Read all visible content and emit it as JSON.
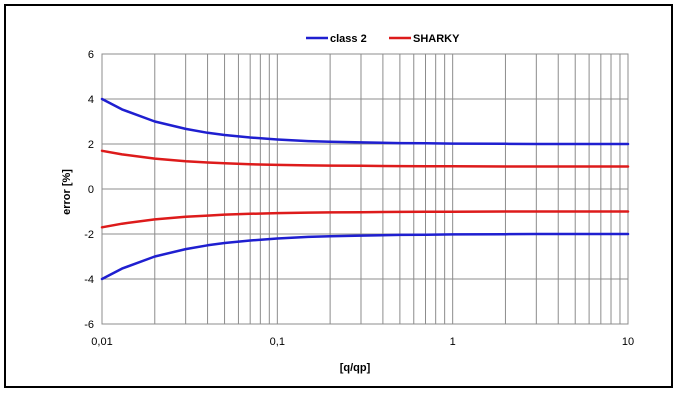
{
  "chart_data": {
    "type": "line",
    "title": "",
    "xlabel": "[q/qp]",
    "ylabel": "error [%]",
    "x_scale": "log",
    "xlim": [
      0.01,
      10
    ],
    "ylim": [
      -6,
      6
    ],
    "grid": true,
    "legend_position": "top-center",
    "x_tick_labels": [
      "0,01",
      "0,1",
      "1",
      "10"
    ],
    "y_tick_labels": [
      "-6",
      "-4",
      "-2",
      "0",
      "2",
      "4",
      "6"
    ],
    "x": [
      0.01,
      0.013,
      0.02,
      0.03,
      0.04,
      0.05,
      0.07,
      0.1,
      0.15,
      0.2,
      0.3,
      0.5,
      0.7,
      1,
      2,
      3,
      5,
      10
    ],
    "series": [
      {
        "name": "class 2",
        "color": "#1f1fd0",
        "upper": [
          4.0,
          3.54,
          3.0,
          2.67,
          2.5,
          2.4,
          2.29,
          2.2,
          2.13,
          2.1,
          2.07,
          2.04,
          2.03,
          2.02,
          2.01,
          2.0,
          2.0,
          2.0
        ],
        "lower": [
          -4.0,
          -3.54,
          -3.0,
          -2.67,
          -2.5,
          -2.4,
          -2.29,
          -2.2,
          -2.13,
          -2.1,
          -2.07,
          -2.04,
          -2.03,
          -2.02,
          -2.01,
          -2.0,
          -2.0,
          -2.0
        ]
      },
      {
        "name": "SHARKY",
        "color": "#dd1b1b",
        "upper": [
          1.7,
          1.54,
          1.35,
          1.23,
          1.18,
          1.14,
          1.1,
          1.07,
          1.05,
          1.04,
          1.03,
          1.02,
          1.01,
          1.01,
          1.0,
          1.0,
          1.0,
          1.0
        ],
        "lower": [
          -1.7,
          -1.54,
          -1.35,
          -1.23,
          -1.18,
          -1.14,
          -1.1,
          -1.07,
          -1.05,
          -1.04,
          -1.03,
          -1.02,
          -1.01,
          -1.01,
          -1.0,
          -1.0,
          -1.0,
          -1.0
        ]
      }
    ]
  }
}
